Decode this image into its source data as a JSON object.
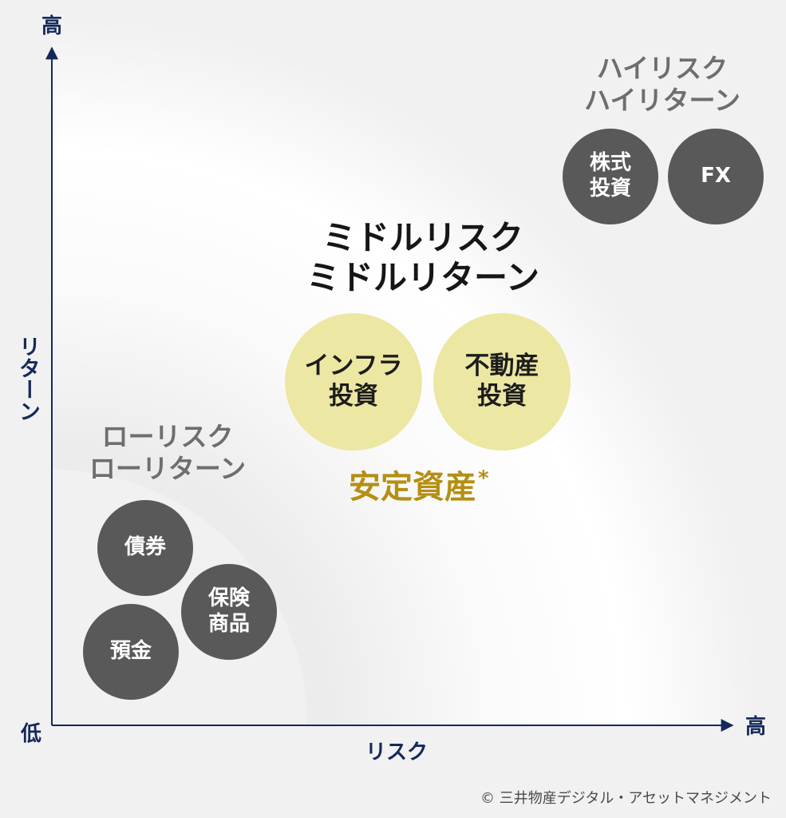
{
  "axes": {
    "y_high": "高",
    "y_title": "リターン",
    "origin_low": "低",
    "x_title": "リスク",
    "x_high": "高"
  },
  "groups": {
    "low": {
      "line1": "ローリスク",
      "line2": "ローリターン"
    },
    "middle": {
      "line1": "ミドルリスク",
      "line2": "ミドルリターン"
    },
    "high": {
      "line1": "ハイリスク",
      "line2": "ハイリターン"
    }
  },
  "bubbles": {
    "bonds": {
      "line1": "債券"
    },
    "insurance": {
      "line1": "保険",
      "line2": "商品"
    },
    "deposit": {
      "line1": "預金"
    },
    "infra": {
      "line1": "インフラ",
      "line2": "投資"
    },
    "realestate": {
      "line1": "不動産",
      "line2": "投資"
    },
    "stocks": {
      "line1": "株式",
      "line2": "投資"
    },
    "fx": {
      "line1": "FX"
    }
  },
  "stable_assets": {
    "label": "安定資産",
    "mark": "*"
  },
  "copyright": "© 三井物産デジタル・アセットマネジメント",
  "colors": {
    "axis": "#14295a",
    "dark_bubble": "#595959",
    "yellow_bubble": "#ece7a2",
    "stable_text": "#b48f12"
  }
}
